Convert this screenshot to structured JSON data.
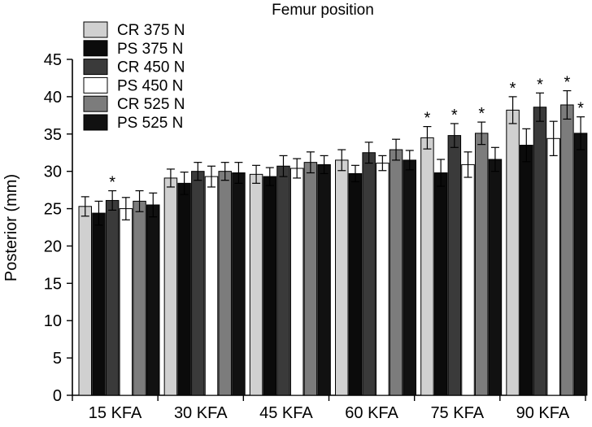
{
  "chart_data": {
    "type": "bar",
    "title": "Femur position",
    "xlabel": "",
    "ylabel": "Posterior (mm)",
    "ylim": [
      0,
      45
    ],
    "yticks": [
      0,
      5,
      10,
      15,
      20,
      25,
      30,
      35,
      40,
      45
    ],
    "grid": false,
    "legend_position": "top-left",
    "categories": [
      "15 KFA",
      "30 KFA",
      "45 KFA",
      "60 KFA",
      "75 KFA",
      "90 KFA"
    ],
    "series": [
      {
        "name": "CR 375 N",
        "color": "#d0d0d0",
        "values": [
          25.3,
          29.1,
          29.6,
          31.5,
          34.5,
          38.2
        ],
        "errors": [
          1.3,
          1.2,
          1.2,
          1.4,
          1.5,
          1.8
        ]
      },
      {
        "name": "PS 375 N",
        "color": "#0b0b0b",
        "values": [
          24.4,
          28.4,
          29.3,
          29.7,
          29.8,
          33.5
        ],
        "errors": [
          1.6,
          1.5,
          1.2,
          1.1,
          1.8,
          2.2
        ]
      },
      {
        "name": "CR 450 N",
        "color": "#3a3a3a",
        "values": [
          26.1,
          30.0,
          30.7,
          32.5,
          34.8,
          38.6
        ],
        "errors": [
          1.3,
          1.2,
          1.4,
          1.4,
          1.6,
          1.9
        ]
      },
      {
        "name": "PS 450 N",
        "color": "#ffffff",
        "values": [
          25.0,
          29.3,
          30.4,
          31.1,
          30.9,
          34.4
        ],
        "errors": [
          1.5,
          1.4,
          1.3,
          1.0,
          1.7,
          2.3
        ]
      },
      {
        "name": "CR 525 N",
        "color": "#7c7c7c",
        "values": [
          26.0,
          30.0,
          31.2,
          32.9,
          35.1,
          38.9
        ],
        "errors": [
          1.4,
          1.2,
          1.4,
          1.4,
          1.5,
          1.9
        ]
      },
      {
        "name": "PS 525 N",
        "color": "#111111",
        "values": [
          25.5,
          29.8,
          30.9,
          31.5,
          31.6,
          35.1
        ],
        "errors": [
          1.6,
          1.4,
          1.2,
          1.3,
          1.6,
          2.2
        ]
      }
    ],
    "annotations": [
      {
        "text": "*",
        "category": "15 KFA",
        "series": "CR 450 N"
      },
      {
        "text": "*",
        "category": "75 KFA",
        "series": "CR 375 N"
      },
      {
        "text": "*",
        "category": "75 KFA",
        "series": "CR 450 N"
      },
      {
        "text": "*",
        "category": "75 KFA",
        "series": "CR 525 N"
      },
      {
        "text": "*",
        "category": "90 KFA",
        "series": "CR 375 N"
      },
      {
        "text": "*",
        "category": "90 KFA",
        "series": "CR 450 N"
      },
      {
        "text": "*",
        "category": "90 KFA",
        "series": "CR 525 N"
      },
      {
        "text": "*",
        "category": "90 KFA",
        "series": "PS 525 N"
      }
    ]
  }
}
